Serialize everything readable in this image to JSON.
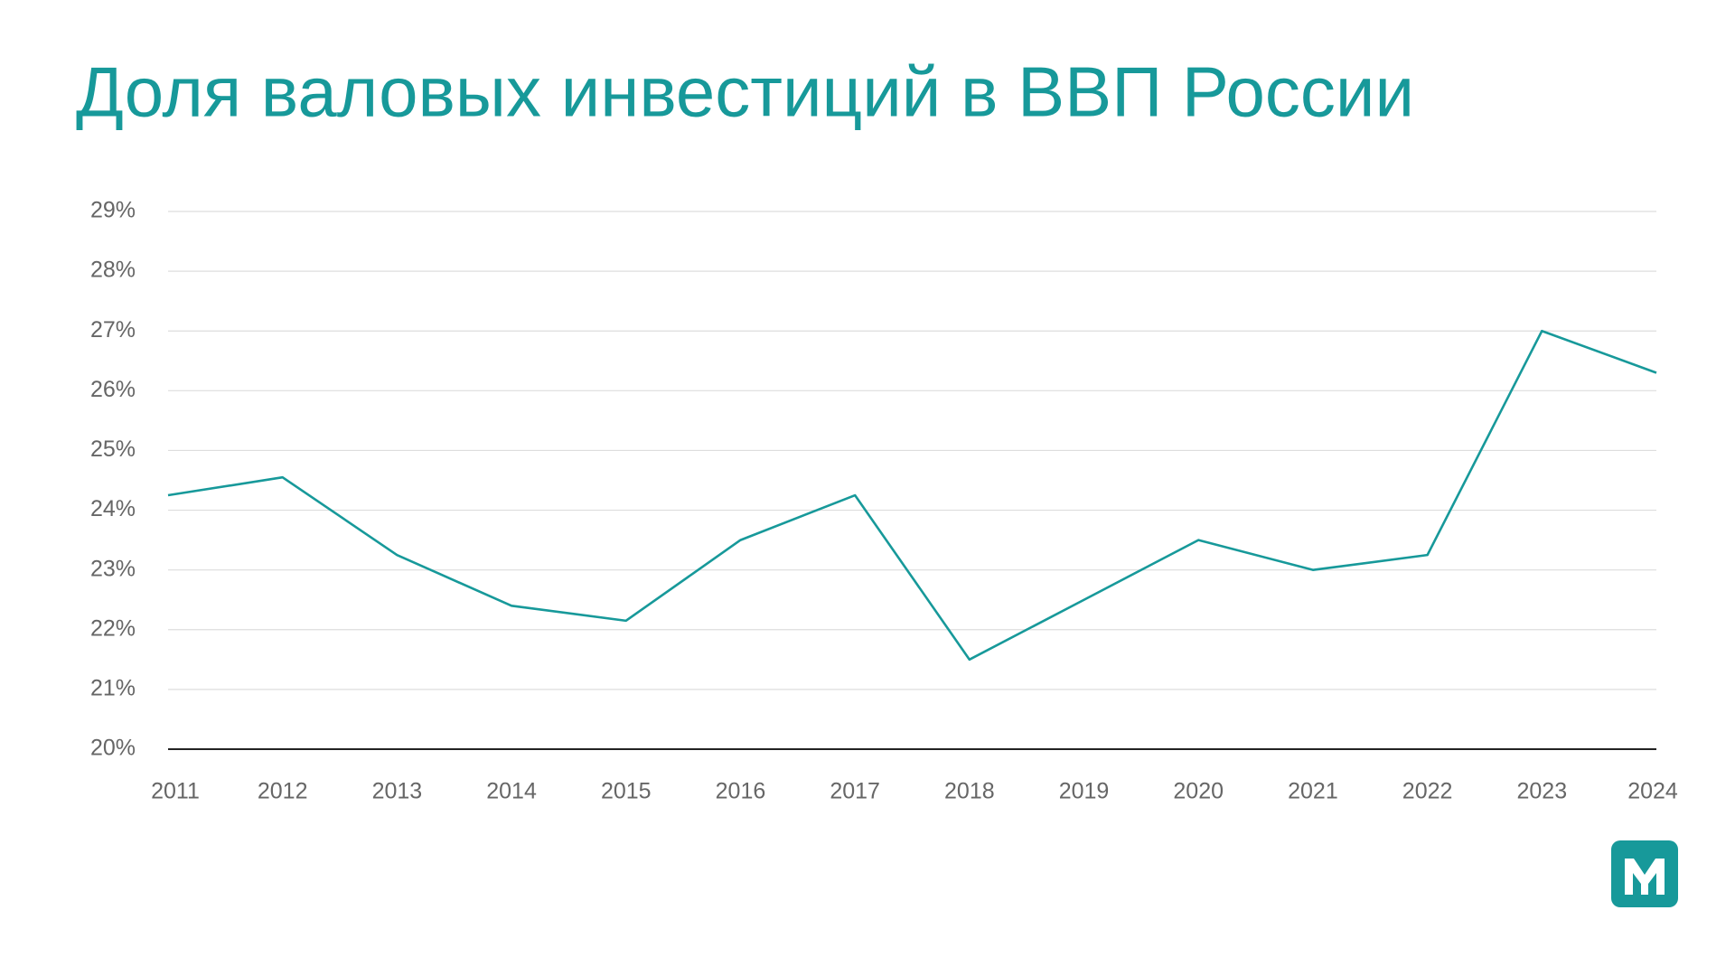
{
  "chart_data": {
    "type": "line",
    "title": "Доля валовых инвестиций в ВВП России",
    "categories": [
      "2011",
      "2012",
      "2013",
      "2014",
      "2015",
      "2016",
      "2017",
      "2018",
      "2019",
      "2020",
      "2021",
      "2022",
      "2023",
      "2024"
    ],
    "series": [
      {
        "color": "#17999a",
        "values": [
          24.25,
          24.55,
          23.25,
          22.4,
          22.15,
          23.5,
          24.25,
          21.5,
          22.5,
          23.5,
          23.0,
          23.25,
          27.0,
          26.3
        ]
      }
    ],
    "ylim": [
      20,
      29
    ],
    "yticks": [
      {
        "value": 20,
        "label": "20%"
      },
      {
        "value": 21,
        "label": "21%"
      },
      {
        "value": 22,
        "label": "22%"
      },
      {
        "value": 23,
        "label": "23%"
      },
      {
        "value": 24,
        "label": "24%"
      },
      {
        "value": 25,
        "label": "25%"
      },
      {
        "value": 26,
        "label": "26%"
      },
      {
        "value": 27,
        "label": "27%"
      },
      {
        "value": 28,
        "label": "28%"
      },
      {
        "value": 29,
        "label": "29%"
      }
    ],
    "grid": true
  }
}
